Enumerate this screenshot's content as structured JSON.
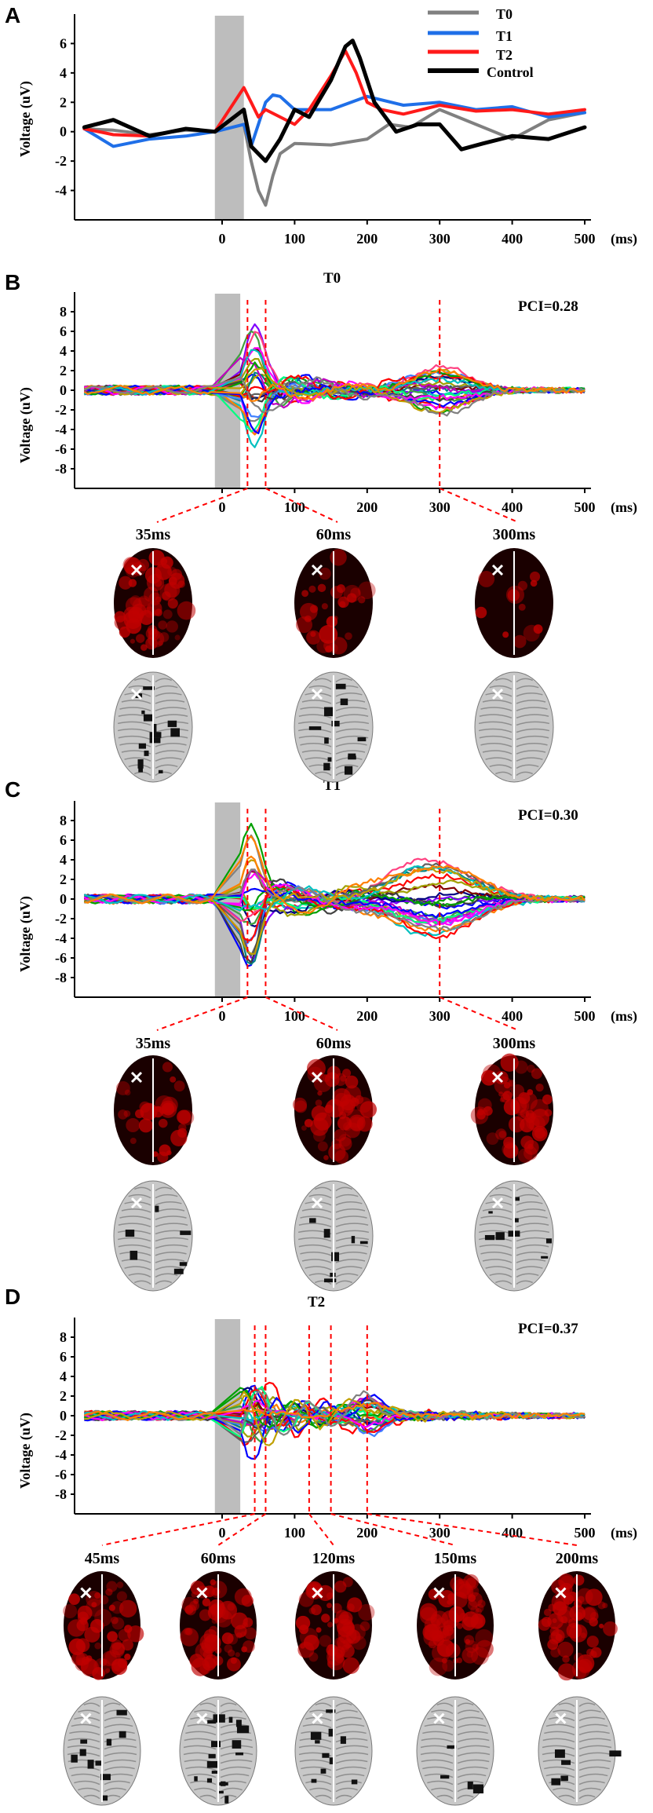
{
  "panels": {
    "A": {
      "letter": "A"
    },
    "B": {
      "letter": "B",
      "title": "T0",
      "pci": "PCI=0.28",
      "times": [
        "35ms",
        "60ms",
        "300ms"
      ]
    },
    "C": {
      "letter": "C",
      "title": "T1",
      "pci": "PCI=0.30",
      "times": [
        "35ms",
        "60ms",
        "300ms"
      ]
    },
    "D": {
      "letter": "D",
      "title": "T2",
      "pci": "PCI=0.37",
      "times": [
        "45ms",
        "60ms",
        "120ms",
        "150ms",
        "200ms"
      ]
    }
  },
  "axis": {
    "ylabel": "Voltage (uV)",
    "xunit": "(ms)",
    "xticks": [
      "0",
      "100",
      "200",
      "300",
      "400",
      "500"
    ],
    "yticksA": [
      "6",
      "4",
      "2",
      "0",
      "-2",
      "-4"
    ],
    "yticksBCD": [
      "8",
      "6",
      "4",
      "2",
      "0",
      "-2",
      "-4",
      "-6",
      "-8"
    ]
  },
  "legend": {
    "items": [
      {
        "name": "T0",
        "color": "#808080"
      },
      {
        "name": "T1",
        "color": "#1f6fe8"
      },
      {
        "name": "T2",
        "color": "#ff1a1a"
      },
      {
        "name": "Control",
        "color": "#000000"
      }
    ]
  },
  "chart_data": [
    {
      "type": "line",
      "panel": "A",
      "xlabel": "(ms)",
      "ylabel": "Voltage (uV)",
      "xlim": [
        -190,
        500
      ],
      "ylim": [
        -6,
        8
      ],
      "stim_window": [
        -10,
        30
      ],
      "series": [
        {
          "name": "T0",
          "color": "#808080",
          "x": [
            -190,
            -150,
            -100,
            -50,
            -10,
            30,
            40,
            50,
            60,
            70,
            80,
            100,
            150,
            200,
            230,
            260,
            300,
            350,
            400,
            450,
            500
          ],
          "y": [
            0.2,
            0.1,
            -0.2,
            0.1,
            0,
            0.5,
            -2,
            -4,
            -5,
            -3,
            -1.5,
            -0.8,
            -0.9,
            -0.5,
            0.5,
            0.3,
            1.5,
            0.5,
            -0.5,
            0.8,
            1.3
          ]
        },
        {
          "name": "T1",
          "color": "#1f6fe8",
          "x": [
            -190,
            -150,
            -100,
            -50,
            -10,
            30,
            40,
            50,
            60,
            70,
            80,
            100,
            150,
            200,
            250,
            300,
            350,
            400,
            450,
            500
          ],
          "y": [
            0.2,
            -1,
            -0.5,
            -0.3,
            0,
            0.5,
            -1,
            0.5,
            2,
            2.5,
            2.4,
            1.5,
            1.5,
            2.4,
            1.8,
            2.0,
            1.5,
            1.7,
            1.0,
            1.3
          ]
        },
        {
          "name": "T2",
          "color": "#ff1a1a",
          "x": [
            -190,
            -150,
            -100,
            -50,
            -10,
            30,
            40,
            50,
            60,
            80,
            100,
            120,
            150,
            170,
            185,
            200,
            220,
            250,
            300,
            350,
            400,
            450,
            500
          ],
          "y": [
            0.2,
            -0.2,
            -0.3,
            0.2,
            0,
            3,
            2,
            1,
            1.5,
            1,
            0.5,
            1.5,
            3.8,
            5.5,
            4,
            2,
            1.5,
            1.2,
            1.8,
            1.4,
            1.5,
            1.2,
            1.5
          ]
        },
        {
          "name": "Control",
          "color": "#000000",
          "x": [
            -190,
            -150,
            -100,
            -50,
            -10,
            30,
            40,
            50,
            60,
            80,
            100,
            120,
            150,
            170,
            180,
            190,
            210,
            240,
            270,
            300,
            330,
            360,
            400,
            450,
            500
          ],
          "y": [
            0.3,
            0.8,
            -0.3,
            0.2,
            0,
            1.5,
            -1,
            -1.5,
            -2,
            -0.5,
            1.5,
            1.0,
            3.5,
            5.8,
            6.2,
            5,
            2,
            0,
            0.5,
            0.5,
            -1.2,
            -0.8,
            -0.3,
            -0.5,
            0.3
          ]
        }
      ]
    },
    {
      "type": "line",
      "panel": "B",
      "title": "T0",
      "xlabel": "(ms)",
      "ylabel": "Voltage (uV)",
      "xlim": [
        -190,
        500
      ],
      "ylim": [
        -10,
        10
      ],
      "stim_window": [
        -10,
        25
      ],
      "markers_ms": [
        35,
        60,
        300
      ]
    },
    {
      "type": "line",
      "panel": "C",
      "title": "T1",
      "xlabel": "(ms)",
      "ylabel": "Voltage (uV)",
      "xlim": [
        -190,
        500
      ],
      "ylim": [
        -10,
        10
      ],
      "stim_window": [
        -10,
        25
      ],
      "markers_ms": [
        35,
        60,
        300
      ]
    },
    {
      "type": "line",
      "panel": "D",
      "title": "T2",
      "xlabel": "(ms)",
      "ylabel": "Voltage (uV)",
      "xlim": [
        -190,
        500
      ],
      "ylim": [
        -10,
        10
      ],
      "stim_window": [
        -10,
        25
      ],
      "markers_ms": [
        45,
        60,
        120,
        150,
        200
      ]
    }
  ]
}
